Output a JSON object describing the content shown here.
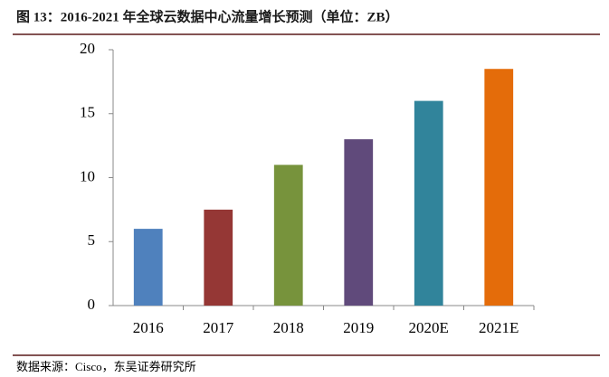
{
  "chart_data": {
    "type": "bar",
    "title": "图 13：2016-2021 年全球云数据中心流量增长预测（单位：ZB）",
    "source": "数据来源：Cisco，东吴证券研究所",
    "categories": [
      "2016",
      "2017",
      "2018",
      "2019",
      "2020E",
      "2021E"
    ],
    "values": [
      6,
      7.5,
      11,
      13,
      16,
      18.5
    ],
    "colors": [
      "#4f81bd",
      "#953735",
      "#77933c",
      "#604a7b",
      "#31849b",
      "#e46c0a"
    ],
    "ylim": [
      0,
      20
    ],
    "yticks": [
      0,
      5,
      10,
      15,
      20
    ],
    "grid": false
  }
}
